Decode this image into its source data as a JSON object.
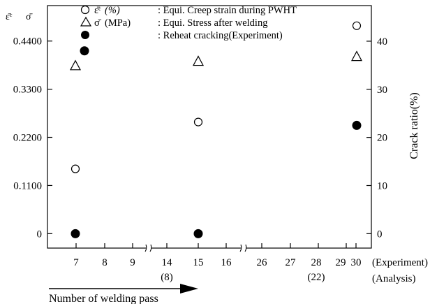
{
  "chart_data": {
    "type": "scatter",
    "x_categories": [
      "7",
      "8",
      "9",
      "14",
      "15",
      "16",
      "26",
      "27",
      "28",
      "29",
      "30"
    ],
    "x_secondary_labels": [
      {
        "category": "14",
        "label": "(8)"
      },
      {
        "category": "28",
        "label": "(22)"
      }
    ],
    "x_axis_break_after": [
      "9",
      "16"
    ],
    "x_category_caption": "(Experiment)",
    "x_secondary_caption": "(Analysis)",
    "xlabel": "Number of welding pass",
    "y_left": {
      "symbols": [
        "ε̄ᶜ",
        "σ̄"
      ],
      "ticks": [
        "0",
        "0.1100",
        "0.2200",
        "0.3300",
        "0.4400"
      ],
      "range": [
        -0.033,
        0.521
      ]
    },
    "y_right": {
      "label": "Crack ratio(%)",
      "ticks": [
        "0",
        "10",
        "20",
        "30",
        "40"
      ],
      "range": [
        -3,
        47.4
      ]
    },
    "legend": [
      {
        "marker": "circle-open",
        "symbol": "ε̄ᶜ",
        "unit": "(%)",
        "text": ": Equi. Creep strain during PWHT"
      },
      {
        "marker": "triangle-open",
        "symbol": "σ̄",
        "unit": "(MPa)",
        "text": ": Equi. Stress after welding"
      },
      {
        "marker": "circle-filled",
        "symbol": "",
        "unit": "",
        "text": ": Reheat cracking(Experiment)"
      }
    ],
    "series": [
      {
        "marker": "circle-open",
        "axis": "left",
        "points": [
          {
            "x": "7",
            "y": 0.148
          },
          {
            "x": "15",
            "y": 0.255
          },
          {
            "x": "30",
            "y": 0.475
          }
        ]
      },
      {
        "marker": "triangle-open",
        "axis": "left",
        "points": [
          {
            "x": "7",
            "y": 0.384
          },
          {
            "x": "15",
            "y": 0.394
          },
          {
            "x": "30",
            "y": 0.405
          }
        ]
      },
      {
        "marker": "circle-filled",
        "axis": "right",
        "points": [
          {
            "x": "7",
            "y": 0,
            "offset": "center"
          },
          {
            "x": "7",
            "y": 38,
            "offset": "right"
          },
          {
            "x": "15",
            "y": 0,
            "offset": "center"
          },
          {
            "x": "30",
            "y": 22.5,
            "offset": "center"
          }
        ]
      }
    ]
  }
}
